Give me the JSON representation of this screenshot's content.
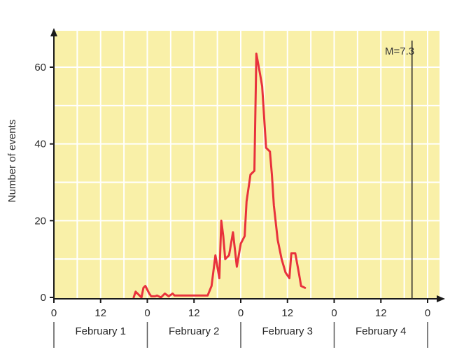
{
  "chart_data": {
    "type": "line",
    "title": "",
    "xlabel": "",
    "ylabel": "Number of events",
    "xlim": [
      0,
      102
    ],
    "ylim": [
      0,
      70
    ],
    "x_ticks": [
      0,
      12,
      24,
      36,
      48,
      60,
      72,
      84,
      96
    ],
    "x_tick_labels": [
      "0",
      "12",
      "0",
      "12",
      "0",
      "12",
      "0",
      "12",
      "0"
    ],
    "y_ticks": [
      0,
      20,
      40,
      60
    ],
    "y_tick_labels": [
      "0",
      "20",
      "40",
      "60"
    ],
    "day_labels": [
      "February 1",
      "February 2",
      "February 3",
      "February 4"
    ],
    "grid": true,
    "annotation": {
      "text": "M=7.3",
      "x": 92
    },
    "colors": {
      "background": "#f9f0a8",
      "grid": "#ffffff",
      "line": "#e8323c",
      "axis": "#1a1a1a"
    },
    "series": [
      {
        "color": "#e8323c",
        "points": [
          [
            20.5,
            0
          ],
          [
            21,
            1.5
          ],
          [
            22,
            0.5
          ],
          [
            22.5,
            0
          ],
          [
            23,
            2.5
          ],
          [
            23.5,
            3
          ],
          [
            24,
            2
          ],
          [
            24.5,
            1
          ],
          [
            25,
            0.3
          ],
          [
            26,
            0.3
          ],
          [
            26.5,
            0.5
          ],
          [
            27.5,
            0
          ],
          [
            28.5,
            1
          ],
          [
            29.5,
            0.3
          ],
          [
            30.5,
            1
          ],
          [
            31,
            0.5
          ],
          [
            34,
            0.5
          ],
          [
            36,
            0.5
          ],
          [
            38,
            0.5
          ],
          [
            39.5,
            0.5
          ],
          [
            40.5,
            3
          ],
          [
            41.5,
            11
          ],
          [
            42,
            8
          ],
          [
            42.5,
            5
          ],
          [
            43,
            20
          ],
          [
            43.5,
            16
          ],
          [
            44,
            10
          ],
          [
            45,
            11
          ],
          [
            46,
            17
          ],
          [
            47,
            8
          ],
          [
            48,
            14
          ],
          [
            49,
            16
          ],
          [
            49.5,
            25
          ],
          [
            50.5,
            32
          ],
          [
            51.5,
            33
          ],
          [
            52,
            63.5
          ],
          [
            53,
            58
          ],
          [
            53.5,
            55
          ],
          [
            54.5,
            39
          ],
          [
            55.5,
            38
          ],
          [
            56,
            32
          ],
          [
            56.5,
            24
          ],
          [
            57.5,
            15
          ],
          [
            58.5,
            10
          ],
          [
            59.5,
            6.5
          ],
          [
            60.5,
            5
          ],
          [
            61,
            11.5
          ],
          [
            62,
            11.5
          ],
          [
            63,
            6
          ],
          [
            63.5,
            3
          ],
          [
            64.5,
            2.5
          ]
        ]
      }
    ]
  }
}
